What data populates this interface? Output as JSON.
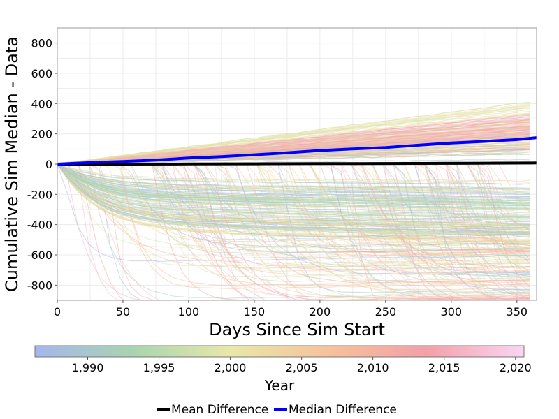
{
  "chart_data": {
    "type": "line",
    "title": "",
    "xlabel": "Days Since Sim Start",
    "ylabel": "Cumulative Sim Median - Data",
    "xlim": [
      0,
      365
    ],
    "ylim": [
      -900,
      900
    ],
    "x_ticks": [
      {
        "value": 0,
        "label": "0"
      },
      {
        "value": 50,
        "label": "50"
      },
      {
        "value": 100,
        "label": "100"
      },
      {
        "value": 150,
        "label": "150"
      },
      {
        "value": 200,
        "label": "200"
      },
      {
        "value": 250,
        "label": "250"
      },
      {
        "value": 300,
        "label": "300"
      },
      {
        "value": 350,
        "label": "350"
      }
    ],
    "y_ticks": [
      {
        "value": 800,
        "label": "800"
      },
      {
        "value": 600,
        "label": "600"
      },
      {
        "value": 400,
        "label": "400"
      },
      {
        "value": 200,
        "label": "200"
      },
      {
        "value": 0,
        "label": "0"
      },
      {
        "value": -200,
        "label": "-200"
      },
      {
        "value": -400,
        "label": "-400"
      },
      {
        "value": -600,
        "label": "-600"
      },
      {
        "value": -800,
        "label": "-800"
      }
    ],
    "grid": true,
    "series": [
      {
        "name": "Mean Difference",
        "color": "#000000",
        "x": [
          0,
          50,
          100,
          150,
          200,
          250,
          300,
          365
        ],
        "y": [
          0,
          0,
          1,
          2,
          3,
          4,
          5,
          8
        ]
      },
      {
        "name": "Median Difference",
        "color": "#0000ff",
        "x": [
          0,
          25,
          50,
          75,
          100,
          125,
          150,
          175,
          200,
          225,
          250,
          275,
          300,
          325,
          350,
          365
        ],
        "y": [
          0,
          10,
          17,
          27,
          40,
          50,
          62,
          75,
          90,
          100,
          110,
          125,
          140,
          150,
          162,
          175
        ]
      }
    ],
    "colorbar": {
      "title": "Year",
      "min": 1986.3,
      "max": 2020.6,
      "ticks": [
        {
          "value": 1990,
          "label": "1,990"
        },
        {
          "value": 1995,
          "label": "1,995"
        },
        {
          "value": 2000,
          "label": "2,000"
        },
        {
          "value": 2005,
          "label": "2,005"
        },
        {
          "value": 2010,
          "label": "2,010"
        },
        {
          "value": 2015,
          "label": "2,015"
        },
        {
          "value": 2020,
          "label": "2,020"
        }
      ],
      "colors": [
        "#a6b6ee",
        "#a8d4b0",
        "#e8e8a8",
        "#f6c29a",
        "#f3a0a8",
        "#fbd4f2"
      ]
    },
    "legend_position": "bottom-center",
    "background_traces": {
      "description_note": "",
      "count": 420,
      "color_by": "year"
    }
  }
}
